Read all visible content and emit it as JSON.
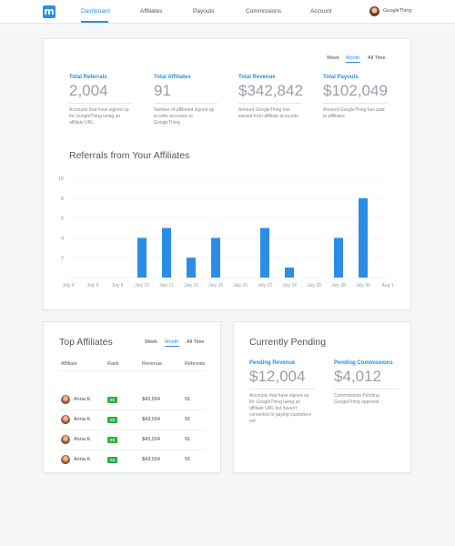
{
  "nav": {
    "logo": "m",
    "items": [
      {
        "label": "Dashboard",
        "active": true
      },
      {
        "label": "Affiliates",
        "active": false
      },
      {
        "label": "Payouts",
        "active": false
      },
      {
        "label": "Commissions",
        "active": false
      },
      {
        "label": "Account",
        "active": false
      }
    ],
    "user": "GoogleThing"
  },
  "overview": {
    "ranges": [
      "Week",
      "Month",
      "All Time"
    ],
    "active_range": "Month",
    "stats": [
      {
        "label": "Total Referrals",
        "value": "2,004",
        "desc": "Accounts that have signed up for GoogleThing using an affiliate URL."
      },
      {
        "label": "Total Affiliates",
        "value": "91",
        "desc": "Number of affiliated signed up to refer accounts to GoogleThing."
      },
      {
        "label": "Total Revenue",
        "value": "$342,842",
        "desc": "Amount GoogleThing has earned from affiliate accounts."
      },
      {
        "label": "Total Payouts",
        "value": "$102,049",
        "desc": "Amount GoogleThing has paid to affiliates."
      }
    ]
  },
  "chart_data": {
    "type": "bar",
    "title": "Referrals from Your Affiliates",
    "ylim": [
      0,
      10
    ],
    "yticks": [
      "2",
      "4",
      "6",
      "8",
      "10"
    ],
    "x_labels": [
      "July 4",
      "July 6",
      "July 8",
      "July 10",
      "July 12",
      "July 15",
      "July 18",
      "July 20",
      "July 22",
      "July 24",
      "July 26",
      "July 28",
      "July 30",
      "Aug 1"
    ],
    "values": [
      0,
      0,
      0,
      4,
      5,
      2,
      4,
      0,
      5,
      1,
      0,
      4,
      8,
      0
    ],
    "grid": true,
    "color": "#2b8ee6"
  },
  "top_affiliates": {
    "title": "Top Affiliates",
    "ranges": [
      "Week",
      "Month",
      "All Time"
    ],
    "active_range": "Month",
    "columns": [
      "Affiliate",
      "Rank",
      "Revenue",
      "Referrals"
    ],
    "rows": [
      {
        "name": "Anna K.",
        "rank": "#1",
        "revenue": "$43,034",
        "referrals": "91"
      },
      {
        "name": "Anna K.",
        "rank": "#2",
        "revenue": "$43,034",
        "referrals": "91"
      },
      {
        "name": "Anna K.",
        "rank": "#3",
        "revenue": "$43,034",
        "referrals": "91"
      },
      {
        "name": "Anna K.",
        "rank": "#4",
        "revenue": "$43,034",
        "referrals": "91"
      }
    ]
  },
  "pending": {
    "title": "Currently Pending",
    "stats": [
      {
        "label": "Pending Revenue",
        "value": "$12,004",
        "desc": "Accounts that have signed up for GoogleThing using an affiliate URL but haven't converted to paying customers yet."
      },
      {
        "label": "Pending Commissions",
        "value": "$4,012",
        "desc": "Commissions Pending GoogleThing approval."
      }
    ]
  },
  "colors": {
    "accent": "#2b8ee6",
    "rank_badge": "#2fae45"
  }
}
